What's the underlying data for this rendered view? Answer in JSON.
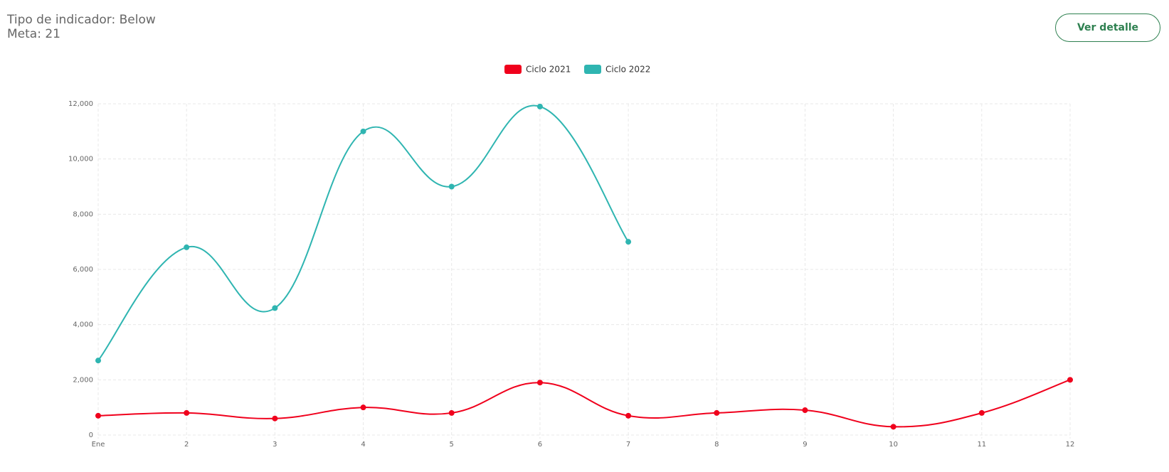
{
  "header": {
    "indicator": "Tipo de indicador: Below",
    "goal": "Meta: 21"
  },
  "button": "Ver detalle",
  "chart_data": {
    "type": "line",
    "categories": [
      "Ene",
      "2",
      "3",
      "4",
      "5",
      "6",
      "7",
      "8",
      "9",
      "10",
      "11",
      "12"
    ],
    "series": [
      {
        "name": "Ciclo 2021",
        "color": "#f0001c",
        "values": [
          700,
          800,
          600,
          1000,
          800,
          1900,
          700,
          800,
          900,
          300,
          800,
          2000
        ]
      },
      {
        "name": "Ciclo 2022",
        "color": "#2fb5b1",
        "values": [
          2700,
          6800,
          4600,
          11000,
          9000,
          11900,
          7000,
          null,
          null,
          null,
          null,
          null
        ]
      }
    ],
    "ylim": [
      0,
      12000
    ],
    "yticks": [
      0,
      {
        "value": 2000,
        "label": "2,000"
      },
      {
        "value": 4000,
        "label": "4,000"
      },
      {
        "value": 6000,
        "label": "6,000"
      },
      {
        "value": 8000,
        "label": "8,000"
      },
      {
        "value": 10000,
        "label": "10,000"
      },
      {
        "value": 12000,
        "label": "12,000"
      }
    ],
    "grid": true,
    "legend": "top"
  }
}
